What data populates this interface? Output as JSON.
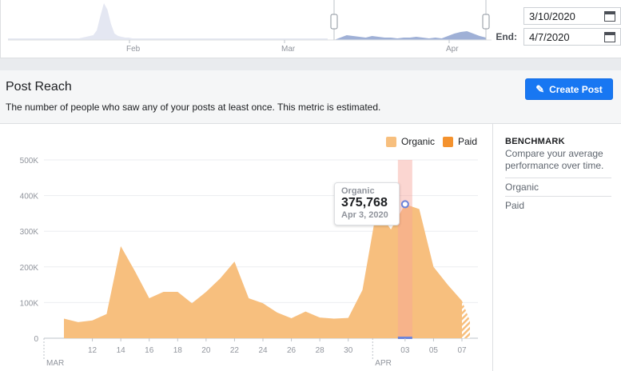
{
  "range": {
    "start_value": "3/10/2020",
    "end_label": "End:",
    "end_value": "4/7/2020",
    "months": [
      "Feb",
      "Mar",
      "Apr"
    ]
  },
  "header": {
    "title": "Post Reach",
    "description": "The number of people who saw any of your posts at least once. This metric is estimated.",
    "create_label": "Create Post"
  },
  "legend": {
    "organic": "Organic",
    "paid": "Paid"
  },
  "benchmark": {
    "title": "BENCHMARK",
    "description": "Compare your average performance over time.",
    "items": [
      "Organic",
      "Paid"
    ]
  },
  "tooltip": {
    "series": "Organic",
    "value": "375,768",
    "date": "Apr 3, 2020"
  },
  "colors": {
    "organic": "#f7bf7e",
    "paid": "#f4922e",
    "accent": "#1877f2",
    "highlight": "#f7a59a"
  },
  "chart_data": {
    "type": "area",
    "y_ticks": [
      "0",
      "100K",
      "200K",
      "300K",
      "400K",
      "500K"
    ],
    "x_tick_labels": [
      "12",
      "14",
      "16",
      "18",
      "20",
      "22",
      "24",
      "26",
      "28",
      "30",
      "03",
      "05",
      "07"
    ],
    "month_labels": [
      "MAR",
      "APR"
    ],
    "ylim": [
      0,
      500000
    ],
    "series": [
      {
        "name": "Organic",
        "values": [
          55000,
          45000,
          50000,
          68000,
          258000,
          188000,
          112000,
          130000,
          130000,
          98000,
          130000,
          168000,
          215000,
          112000,
          98000,
          72000,
          56000,
          75000,
          58000,
          55000,
          57000,
          135000,
          362000,
          305000,
          375768,
          362000,
          200000,
          150000,
          105000
        ],
        "dates": [
          "Mar 10",
          "Mar 11",
          "Mar 12",
          "Mar 13",
          "Mar 14",
          "Mar 15",
          "Mar 16",
          "Mar 17",
          "Mar 18",
          "Mar 19",
          "Mar 20",
          "Mar 21",
          "Mar 22",
          "Mar 23",
          "Mar 24",
          "Mar 25",
          "Mar 26",
          "Mar 27",
          "Mar 28",
          "Mar 29",
          "Mar 30",
          "Mar 31",
          "Apr 1",
          "Apr 2",
          "Apr 3",
          "Apr 4",
          "Apr 5",
          "Apr 6",
          "Apr 7"
        ]
      },
      {
        "name": "Paid",
        "values": [
          0,
          0,
          0,
          0,
          0,
          0,
          0,
          0,
          0,
          0,
          0,
          0,
          0,
          0,
          0,
          0,
          0,
          0,
          0,
          0,
          0,
          0,
          0,
          0,
          0,
          0,
          0,
          0,
          0
        ]
      }
    ],
    "highlight_index": 24
  }
}
